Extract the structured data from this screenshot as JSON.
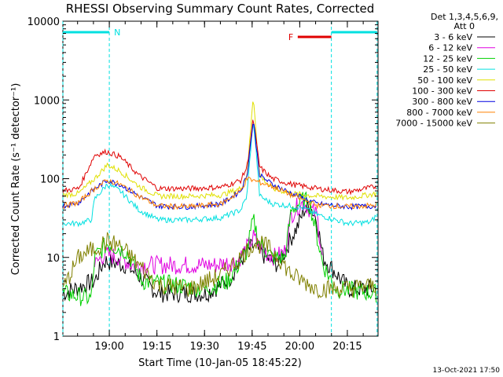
{
  "chart_data": {
    "type": "line",
    "title": "RHESSI Observing Summary Count Rates, Corrected",
    "xlabel": "Start Time (10-Jan-05 18:45:22)",
    "ylabel": "Corrected Count Rate (s⁻¹ detector⁻¹)",
    "yscale": "log",
    "ylim": [
      1,
      10000
    ],
    "xlim_minutes": [
      0,
      99.3
    ],
    "x_ticks": [
      {
        "label": "19:00",
        "minute": 14.63
      },
      {
        "label": "19:15",
        "minute": 29.63
      },
      {
        "label": "19:30",
        "minute": 44.63
      },
      {
        "label": "19:45",
        "minute": 59.63
      },
      {
        "label": "20:00",
        "minute": 74.63
      },
      {
        "label": "20:15",
        "minute": 89.63
      }
    ],
    "y_ticks": [
      {
        "label": "1",
        "value": 1
      },
      {
        "label": "10",
        "value": 10
      },
      {
        "label": "100",
        "value": 100
      },
      {
        "label": "1000",
        "value": 1000
      },
      {
        "label": "10000",
        "value": 10000
      }
    ],
    "legend_header": [
      "Det 1,3,4,5,6,9,",
      "Att 0"
    ],
    "legend_position": "right",
    "series": [
      {
        "name": "3 - 6 keV",
        "color": "#000000",
        "points": [
          [
            0,
            3.5
          ],
          [
            10,
            5
          ],
          [
            13,
            9
          ],
          [
            20,
            8
          ],
          [
            30,
            3.5
          ],
          [
            45,
            3.5
          ],
          [
            52,
            5
          ],
          [
            58,
            12
          ],
          [
            60,
            14
          ],
          [
            64,
            10
          ],
          [
            68,
            8
          ],
          [
            72,
            18
          ],
          [
            74,
            25
          ],
          [
            76,
            40
          ],
          [
            78,
            45
          ],
          [
            80,
            30
          ],
          [
            82,
            10
          ],
          [
            90,
            4
          ],
          [
            99,
            4
          ]
        ]
      },
      {
        "name": "6 - 12 keV",
        "color": "#e000e0",
        "points": [
          [
            10,
            8
          ],
          [
            13,
            11
          ],
          [
            18,
            10
          ],
          [
            22,
            8
          ],
          [
            35,
            8
          ],
          [
            48,
            8
          ],
          [
            55,
            9
          ],
          [
            59,
            15
          ],
          [
            60,
            18
          ],
          [
            63,
            12
          ],
          [
            67,
            10
          ],
          [
            70,
            12
          ],
          [
            72,
            35
          ],
          [
            74,
            45
          ],
          [
            76,
            50
          ],
          [
            78,
            40
          ],
          [
            80,
            35
          ],
          [
            82,
            9
          ]
        ]
      },
      {
        "name": "12 - 25 keV",
        "color": "#00d000",
        "points": [
          [
            0,
            3.5
          ],
          [
            9,
            3
          ],
          [
            10,
            10
          ],
          [
            14,
            15
          ],
          [
            20,
            12
          ],
          [
            25,
            5
          ],
          [
            35,
            4.5
          ],
          [
            45,
            4
          ],
          [
            52,
            5
          ],
          [
            58,
            12
          ],
          [
            60,
            30
          ],
          [
            62,
            15
          ],
          [
            66,
            10
          ],
          [
            70,
            10
          ],
          [
            72,
            40
          ],
          [
            76,
            55
          ],
          [
            78,
            45
          ],
          [
            82,
            8
          ],
          [
            86,
            4
          ],
          [
            99,
            3.5
          ]
        ]
      },
      {
        "name": "25 - 50 keV",
        "color": "#00e0e0",
        "points": [
          [
            0,
            27
          ],
          [
            5,
            27
          ],
          [
            9,
            30
          ],
          [
            10,
            55
          ],
          [
            14,
            85
          ],
          [
            18,
            70
          ],
          [
            24,
            40
          ],
          [
            30,
            30
          ],
          [
            40,
            30
          ],
          [
            50,
            32
          ],
          [
            56,
            40
          ],
          [
            58,
            60
          ],
          [
            59,
            200
          ],
          [
            60,
            560
          ],
          [
            61,
            200
          ],
          [
            62,
            60
          ],
          [
            66,
            48
          ],
          [
            72,
            45
          ],
          [
            76,
            42
          ],
          [
            80,
            35
          ],
          [
            90,
            27
          ],
          [
            97,
            28
          ],
          [
            99,
            35
          ]
        ]
      },
      {
        "name": "50 - 100 keV",
        "color": "#e0e000",
        "points": [
          [
            0,
            62
          ],
          [
            5,
            65
          ],
          [
            10,
            100
          ],
          [
            14,
            150
          ],
          [
            18,
            125
          ],
          [
            24,
            80
          ],
          [
            30,
            60
          ],
          [
            40,
            60
          ],
          [
            50,
            62
          ],
          [
            56,
            75
          ],
          [
            58,
            110
          ],
          [
            59,
            350
          ],
          [
            60,
            1150
          ],
          [
            61,
            350
          ],
          [
            62,
            110
          ],
          [
            66,
            75
          ],
          [
            72,
            65
          ],
          [
            80,
            60
          ],
          [
            90,
            57
          ],
          [
            99,
            65
          ]
        ]
      },
      {
        "name": "100 - 300 keV",
        "color": "#e00000",
        "points": [
          [
            0,
            70
          ],
          [
            5,
            75
          ],
          [
            10,
            200
          ],
          [
            14,
            220
          ],
          [
            18,
            190
          ],
          [
            24,
            110
          ],
          [
            30,
            75
          ],
          [
            40,
            75
          ],
          [
            50,
            78
          ],
          [
            56,
            95
          ],
          [
            58,
            140
          ],
          [
            59,
            280
          ],
          [
            60,
            580
          ],
          [
            61,
            280
          ],
          [
            62,
            140
          ],
          [
            66,
            100
          ],
          [
            72,
            85
          ],
          [
            80,
            75
          ],
          [
            90,
            68
          ],
          [
            99,
            80
          ]
        ]
      },
      {
        "name": "300 - 800 keV",
        "color": "#0000e0",
        "points": [
          [
            0,
            45
          ],
          [
            5,
            50
          ],
          [
            10,
            75
          ],
          [
            14,
            95
          ],
          [
            18,
            85
          ],
          [
            24,
            60
          ],
          [
            30,
            45
          ],
          [
            40,
            44
          ],
          [
            50,
            48
          ],
          [
            56,
            70
          ],
          [
            58,
            110
          ],
          [
            59,
            250
          ],
          [
            60,
            560
          ],
          [
            61,
            250
          ],
          [
            62,
            110
          ],
          [
            66,
            85
          ],
          [
            72,
            65
          ],
          [
            80,
            48
          ],
          [
            90,
            44
          ],
          [
            99,
            45
          ]
        ]
      },
      {
        "name": "800 - 7000 keV",
        "color": "#ff8000",
        "points": [
          [
            0,
            45
          ],
          [
            5,
            50
          ],
          [
            10,
            75
          ],
          [
            14,
            95
          ],
          [
            18,
            85
          ],
          [
            24,
            60
          ],
          [
            30,
            45
          ],
          [
            40,
            44
          ],
          [
            50,
            48
          ],
          [
            56,
            70
          ],
          [
            58,
            100
          ],
          [
            60,
            95
          ],
          [
            62,
            90
          ],
          [
            66,
            80
          ],
          [
            72,
            62
          ],
          [
            80,
            46
          ],
          [
            90,
            44
          ],
          [
            99,
            46
          ]
        ]
      },
      {
        "name": "7000 - 15000 keV",
        "color": "#808000",
        "points": [
          [
            0,
            4
          ],
          [
            5,
            10
          ],
          [
            10,
            13
          ],
          [
            14,
            16
          ],
          [
            18,
            14
          ],
          [
            24,
            8
          ],
          [
            30,
            4.5
          ],
          [
            40,
            4
          ],
          [
            50,
            6
          ],
          [
            56,
            10
          ],
          [
            60,
            15
          ],
          [
            64,
            14
          ],
          [
            68,
            10
          ],
          [
            72,
            6
          ],
          [
            80,
            4
          ],
          [
            90,
            4
          ],
          [
            99,
            4.5
          ]
        ]
      }
    ],
    "spans": [
      {
        "label": "N",
        "color": "#00e0e0",
        "start_minute": 0,
        "end_minute": 14.63
      },
      {
        "label": "",
        "color": "#00e0e0",
        "start_minute": 84.6,
        "end_minute": 99.0
      },
      {
        "label": "F",
        "color": "#e00000",
        "start_minute": 74.0,
        "end_minute": 84.6
      }
    ],
    "vertical_lines_minute": [
      0,
      14.63,
      84.6,
      99.0
    ]
  },
  "footer": {
    "date": "13-Oct-2021 17:50"
  }
}
